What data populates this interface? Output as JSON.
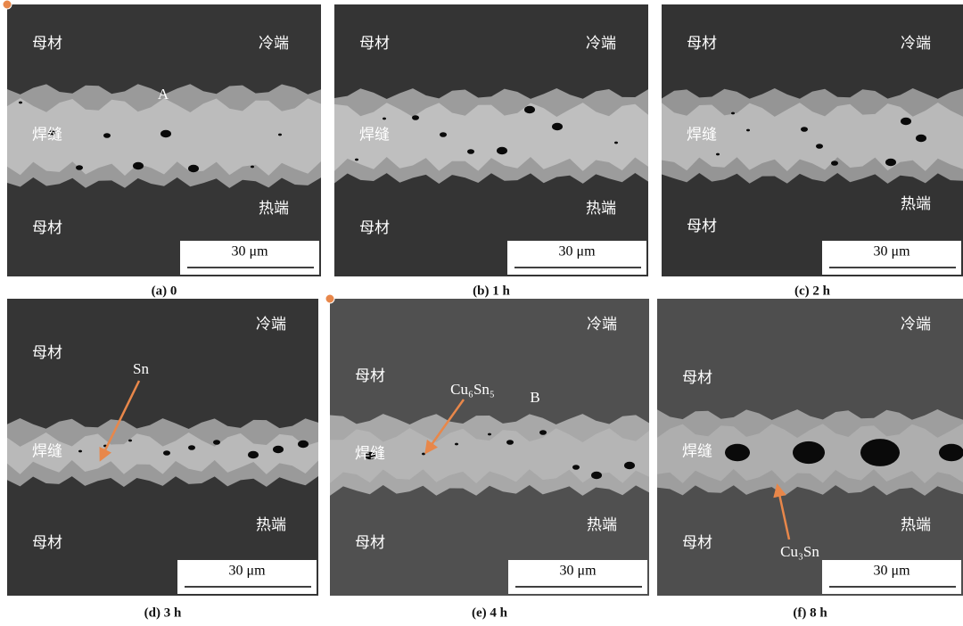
{
  "panels": [
    {
      "caption": "(a) 0",
      "labels": {
        "base_top": "母材",
        "cold_end": "冷端",
        "weld": "焊缝",
        "hot_end": "热端",
        "base_bottom": "母材"
      },
      "scale_bar": "30 μm",
      "annotations": [
        {
          "text": "A"
        }
      ]
    },
    {
      "caption": "(b) 1 h",
      "labels": {
        "base_top": "母材",
        "cold_end": "冷端",
        "weld": "焊缝",
        "hot_end": "热端",
        "base_bottom": "母材"
      },
      "scale_bar": "30 μm",
      "annotations": []
    },
    {
      "caption": "(c) 2 h",
      "labels": {
        "base_top": "母材",
        "cold_end": "冷端",
        "weld": "焊缝",
        "hot_end": "热端",
        "base_bottom": "母材"
      },
      "scale_bar": "30 μm",
      "annotations": []
    },
    {
      "caption": "(d) 3 h",
      "labels": {
        "base_top": "母材",
        "cold_end": "冷端",
        "weld": "焊缝",
        "hot_end": "热端",
        "base_bottom": "母材"
      },
      "scale_bar": "30 μm",
      "annotations": [
        {
          "text": "Sn"
        }
      ]
    },
    {
      "caption": "(e) 4 h",
      "labels": {
        "base_top": "母材",
        "cold_end": "冷端",
        "weld": "焊缝",
        "hot_end": "热端",
        "base_bottom": "母材"
      },
      "scale_bar": "30 μm",
      "annotations": [
        {
          "text": "Cu₆Sn₅"
        },
        {
          "text": "B"
        }
      ]
    },
    {
      "caption": "(f) 8 h",
      "labels": {
        "base_top": "母材",
        "cold_end": "冷端",
        "weld": "焊缝",
        "hot_end": "热端",
        "base_bottom": "母材"
      },
      "scale_bar": "30 μm",
      "annotations": [
        {
          "text": "Cu₃Sn"
        }
      ]
    }
  ]
}
